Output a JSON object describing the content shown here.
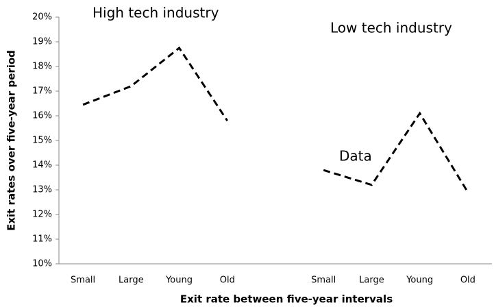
{
  "chart_data": {
    "type": "line",
    "x_label": "Exit rate between five-year intervals",
    "y_label": "Exit rates over five-year period",
    "annotations": [
      "High tech industry",
      "Low tech industry"
    ],
    "categories": [
      "Small",
      "Large",
      "Young",
      "Old",
      null,
      "Small",
      "Large",
      "Young",
      "Old"
    ],
    "series": [
      {
        "name": "Data",
        "color": "#000000",
        "values": [
          16.45,
          17.2,
          18.75,
          15.8,
          null,
          13.8,
          13.2,
          16.1,
          12.9
        ]
      }
    ],
    "ylim": [
      10,
      20
    ],
    "yticks": [
      {
        "value": 10,
        "label": "10%"
      },
      {
        "value": 11,
        "label": "11%"
      },
      {
        "value": 12,
        "label": "12%"
      },
      {
        "value": 13,
        "label": "13%"
      },
      {
        "value": 14,
        "label": "14%"
      },
      {
        "value": 15,
        "label": "15%"
      },
      {
        "value": 16,
        "label": "16%"
      },
      {
        "value": 17,
        "label": "17%"
      },
      {
        "value": 18,
        "label": "18%"
      },
      {
        "value": 19,
        "label": "19%"
      },
      {
        "value": 20,
        "label": "20%"
      }
    ],
    "grid": false
  }
}
